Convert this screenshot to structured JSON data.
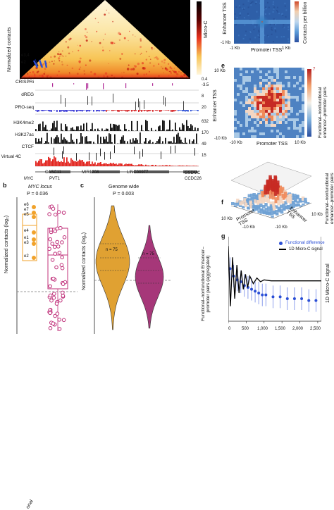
{
  "panel_a": {
    "ylabel": "Normalized contacts",
    "colorbar_label": "Micro-C",
    "elements": [
      "e3,4",
      "e2"
    ],
    "tracks": [
      {
        "name": "CRISPRi",
        "vals": [
          "0.4",
          "-3.5"
        ]
      },
      {
        "name": "dREG",
        "vals": [
          "8"
        ]
      },
      {
        "name": "PRO-seq",
        "vals": [
          "20"
        ]
      },
      {
        "name": "H3K4me2",
        "vals": [
          "632"
        ]
      },
      {
        "name": "H3K27ac",
        "vals": [
          "170"
        ]
      },
      {
        "name": "CTCF",
        "vals": [
          "49"
        ]
      },
      {
        "name": "Virtual 4C",
        "vals": [
          "15"
        ]
      }
    ],
    "genes": [
      "CASC11",
      "MIR1208",
      "LINC00977",
      "MYC",
      "PVT1",
      "GSDMC",
      "CCDC26"
    ]
  },
  "panel_d": {
    "ylabel": "Enhancer TSS",
    "xlabel": "Promoter TSS",
    "cbar_label": "Contacts per billion",
    "x_ticks": [
      "-1 Kb",
      "1 Kb"
    ],
    "y_ticks": [
      "-1 Kb"
    ]
  },
  "panel_e": {
    "letter": "e",
    "ylabel": "Enhancer TSS",
    "xlabel": "Promoter TSS",
    "cbar_label": "Functional–nonfunctional enhancer–promoter pairs",
    "x_ticks": [
      "-10 Kb",
      "10 Kb"
    ],
    "y_ticks": [
      "10 Kb",
      "-10 Kb"
    ]
  },
  "panel_f": {
    "letter": "f",
    "zlabel": "Functional–nonfunctional enhancer–promoter pairs",
    "xlabel": "Promoter TSS",
    "ylabel": "Enhancer TSS",
    "ticks": [
      "10 Kb",
      "-10 Kb",
      "-10 Kb",
      "10 Kb"
    ]
  },
  "panel_b": {
    "letter": "b",
    "title": "MYC locus",
    "pvalue": "P = 0.036",
    "ylabel": "Normalized contacts (log₂)",
    "elements": [
      "e6",
      "e7",
      "e5",
      "e4",
      "e1",
      "e3",
      "e2"
    ],
    "xlabels": [
      "onal",
      ""
    ]
  },
  "panel_c": {
    "letter": "c",
    "title": "Genome wide",
    "pvalue": "P = 0.003",
    "ylabel": "Normalized contacts (log₂)",
    "n_labels": [
      "n = 75",
      "n = 75"
    ],
    "xlabels": [
      "onal",
      "onal"
    ]
  },
  "panel_g": {
    "letter": "g",
    "ylabel_left": "Functional–nonfunctional Enhancer–promoter pairs (aggregated)",
    "ylabel_right": "1D Micro-C signal",
    "legend": [
      "Functional difference",
      "1D Micro-C signal"
    ],
    "x_ticks": [
      "0",
      "500",
      "1,000",
      "1,500",
      "2,000",
      "2,500"
    ]
  },
  "colors": {
    "hic_hot": "#e8321e",
    "hic_warm": "#f7b733",
    "orange": "#f1a22a",
    "pink": "#c0307a",
    "violin_orange": "#e0a132",
    "violin_purple": "#a63779",
    "blue": "#2b4fd6",
    "navy": "#1e3a8a"
  },
  "chart_data": [
    {
      "type": "line",
      "title": "",
      "xlabel": "",
      "ylabel": "1D Micro-C signal",
      "xlim": [
        0,
        2600
      ],
      "series": [
        {
          "name": "Functional difference",
          "x": [
            50,
            150,
            250,
            350,
            450,
            550,
            650,
            750,
            850,
            950,
            1050,
            1250,
            1450,
            1650,
            1850,
            2050,
            2250,
            2450
          ],
          "y": [
            28,
            24,
            22,
            21,
            19,
            18,
            17,
            16,
            15,
            14,
            14,
            13,
            13,
            12,
            12,
            12,
            11,
            11
          ]
        },
        {
          "name": "1D Micro-C signal",
          "x": [
            0,
            60,
            120,
            180,
            240,
            300,
            360,
            420,
            480,
            540,
            600,
            700,
            800,
            900,
            1000,
            1200,
            1400,
            1600,
            1800,
            2000,
            2200,
            2400,
            2600
          ],
          "y": [
            40,
            8,
            34,
            12,
            30,
            15,
            27,
            17,
            25,
            18,
            24,
            20,
            23,
            21,
            22,
            21.5,
            21.5,
            21.5,
            21.5,
            21.5,
            21.5,
            21.5,
            21.5
          ]
        }
      ]
    }
  ]
}
